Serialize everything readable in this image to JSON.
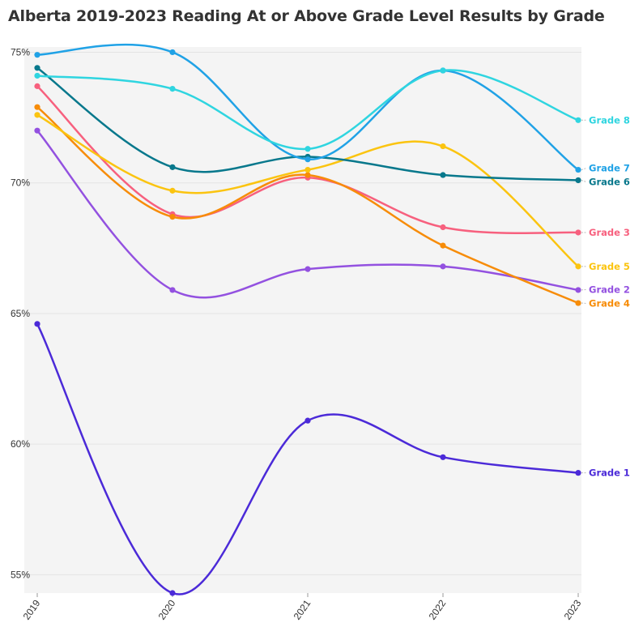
{
  "chart_data": {
    "type": "line",
    "title": "Alberta 2019-2023 Reading At or Above Grade Level Results by Grade",
    "xlabel": "",
    "ylabel": "",
    "x": [
      "2019",
      "2020",
      "2021",
      "2022",
      "2023"
    ],
    "ylim": [
      54.3,
      75.2
    ],
    "yticks": [
      55,
      60,
      65,
      70,
      75
    ],
    "ytick_labels": [
      "55%",
      "60%",
      "65%",
      "70%",
      "75%"
    ],
    "grid": true,
    "legend": "direct-labels-right",
    "series": [
      {
        "name": "Grade 1",
        "color": "#4b2ad8",
        "values": [
          64.6,
          54.3,
          60.9,
          59.5,
          58.9
        ]
      },
      {
        "name": "Grade 2",
        "color": "#9351e0",
        "values": [
          72.0,
          65.9,
          66.7,
          66.8,
          65.9
        ]
      },
      {
        "name": "Grade 3",
        "color": "#f7607e",
        "values": [
          73.7,
          68.8,
          70.2,
          68.3,
          68.1
        ]
      },
      {
        "name": "Grade 4",
        "color": "#f78c08",
        "values": [
          72.9,
          68.7,
          70.3,
          67.6,
          65.4
        ]
      },
      {
        "name": "Grade 5",
        "color": "#fbc410",
        "values": [
          72.6,
          69.7,
          70.5,
          71.4,
          66.8
        ]
      },
      {
        "name": "Grade 6",
        "color": "#08788c",
        "values": [
          74.4,
          70.6,
          71.0,
          70.3,
          70.1
        ]
      },
      {
        "name": "Grade 7",
        "color": "#20a2e6",
        "values": [
          74.9,
          75.0,
          70.9,
          74.3,
          70.5
        ]
      },
      {
        "name": "Grade 8",
        "color": "#2fd5e0",
        "values": [
          74.1,
          73.6,
          71.3,
          74.3,
          72.4
        ]
      }
    ]
  }
}
